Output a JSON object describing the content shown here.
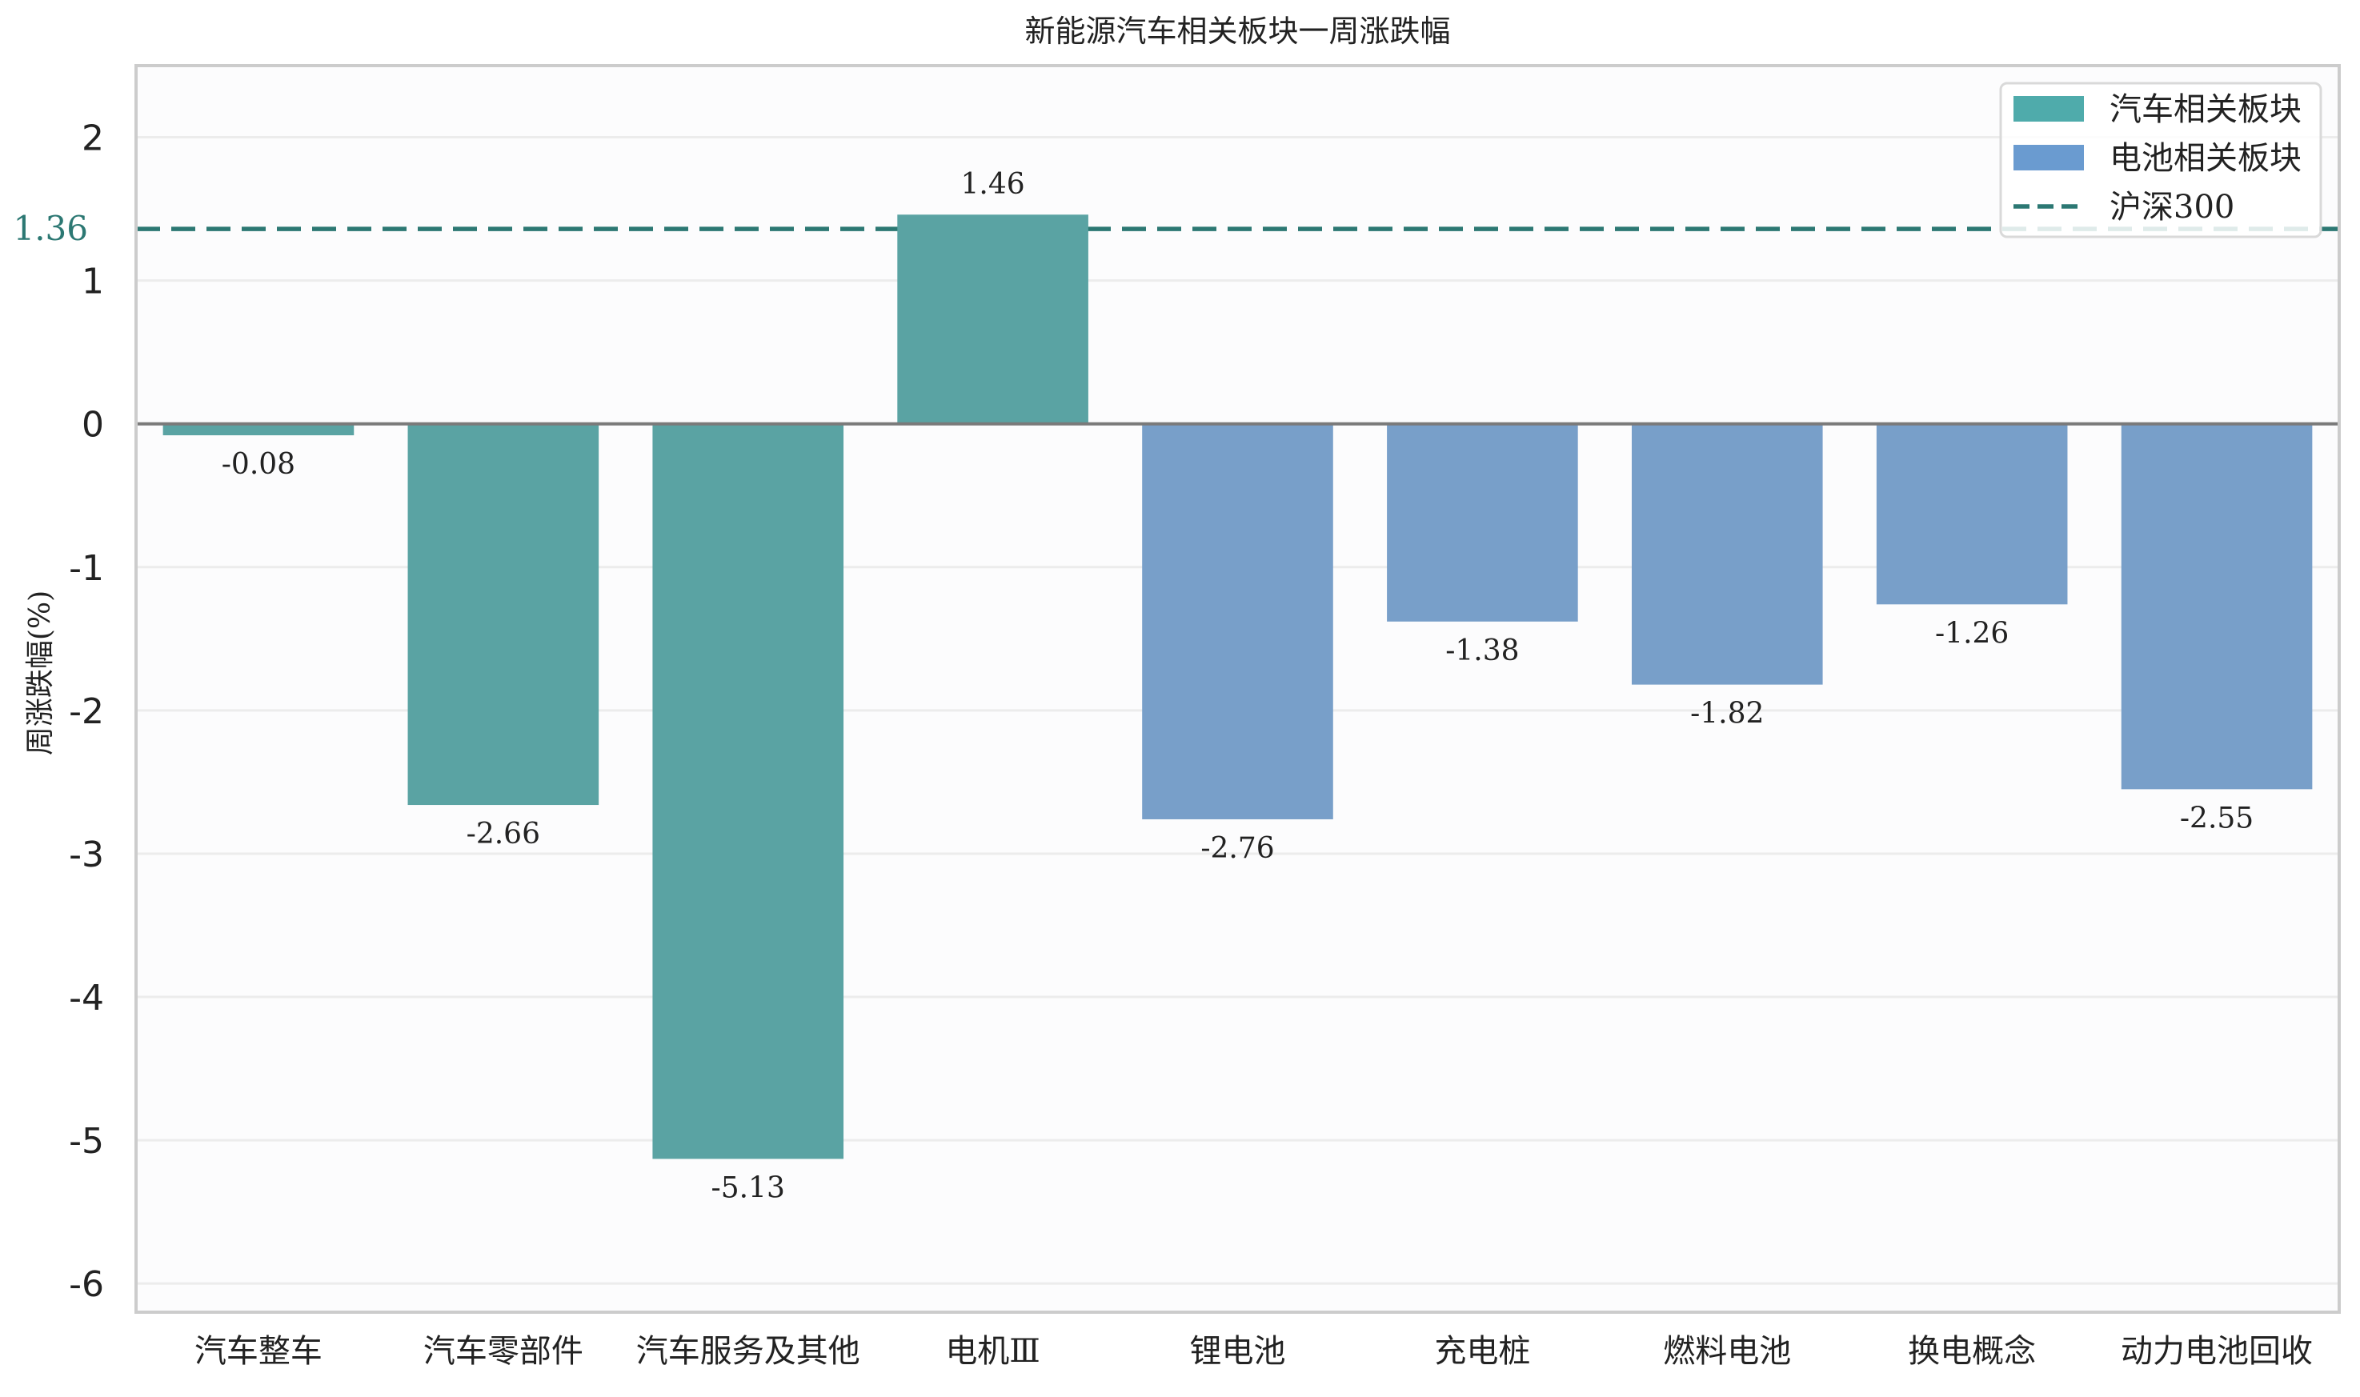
{
  "chart_data": {
    "type": "bar",
    "title": "新能源汽车相关板块一周涨跌幅",
    "xlabel": "",
    "ylabel": "周涨跌幅(%)",
    "ylim": [
      -6.2,
      2.5
    ],
    "yticks": [
      -6,
      -5,
      -4,
      -3,
      -2,
      -1,
      0,
      1,
      2
    ],
    "grid": true,
    "legend_position": "top-right",
    "categories": [
      "汽车整车",
      "汽车零部件",
      "汽车服务及其他",
      "电机Ⅲ",
      "锂电池",
      "充电桩",
      "燃料电池",
      "换电概念",
      "动力电池回收"
    ],
    "values": [
      -0.08,
      -2.66,
      -5.13,
      1.46,
      -2.76,
      -1.38,
      -1.82,
      -1.26,
      -2.55
    ],
    "value_labels": [
      "-0.08",
      "-2.66",
      "-5.13",
      "1.46",
      "-2.76",
      "-1.38",
      "-1.82",
      "-1.26",
      "-2.55"
    ],
    "groups": [
      "auto",
      "auto",
      "auto",
      "auto",
      "battery",
      "battery",
      "battery",
      "battery",
      "battery"
    ],
    "series": [
      {
        "name": "汽车相关板块",
        "key": "auto",
        "color": "#5aa3a3",
        "legend_color": "#4fabab"
      },
      {
        "name": "电池相关板块",
        "key": "battery",
        "color": "#789fc9",
        "legend_color": "#6a9bd0"
      }
    ],
    "reference_line": {
      "name": "沪深300",
      "value": 1.36,
      "label": "1.36",
      "color": "#2c7873",
      "style": "dashed"
    }
  }
}
